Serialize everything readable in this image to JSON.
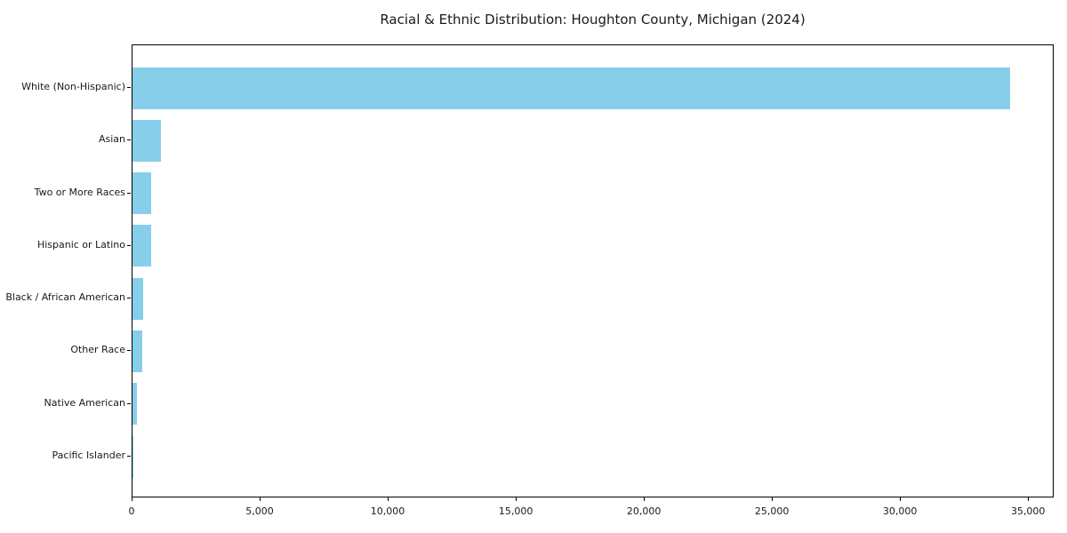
{
  "chart_data": {
    "type": "bar",
    "orientation": "horizontal",
    "title": "Racial & Ethnic Distribution: Houghton County, Michigan (2024)",
    "categories": [
      "White (Non-Hispanic)",
      "Asian",
      "Two or More Races",
      "Hispanic or Latino",
      "Black / African American",
      "Other Race",
      "Native American",
      "Pacific Islander"
    ],
    "values": [
      34250,
      1100,
      740,
      730,
      430,
      370,
      180,
      20
    ],
    "xlabel": "",
    "ylabel": "",
    "xlim": [
      0,
      36000
    ],
    "xticks": [
      0,
      5000,
      10000,
      15000,
      20000,
      25000,
      30000,
      35000
    ],
    "xtick_labels": [
      "0",
      "5,000",
      "10,000",
      "15,000",
      "20,000",
      "25,000",
      "30,000",
      "35,000"
    ],
    "grid": false,
    "legend": null,
    "colors": {
      "bar_fill": "#87ceeb",
      "spine": "#000000",
      "text": "#1a1a1a",
      "background": "#ffffff"
    }
  }
}
